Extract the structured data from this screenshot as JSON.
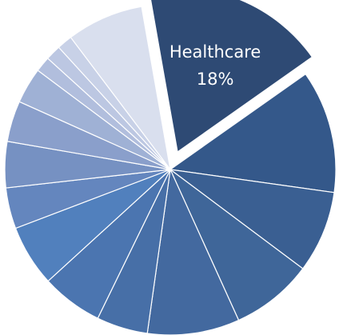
{
  "chart_data": {
    "type": "pie",
    "title": "",
    "slices": [
      {
        "label": "Healthcare",
        "value_label": "18%",
        "value": 18,
        "color": "#2e4a74",
        "exploded": true
      },
      {
        "value": 12,
        "color": "#34588a"
      },
      {
        "value": 8,
        "color": "#3a5f92"
      },
      {
        "value": 8,
        "color": "#3f6699"
      },
      {
        "value": 9,
        "color": "#43699f"
      },
      {
        "value": 5,
        "color": "#476fa7"
      },
      {
        "value": 6,
        "color": "#4b75b0"
      },
      {
        "value": 6,
        "color": "#5180bd"
      },
      {
        "value": 4,
        "color": "#6486be"
      },
      {
        "value": 4.5,
        "color": "#7691c2"
      },
      {
        "value": 4,
        "color": "#8a9fcb"
      },
      {
        "value": 3.5,
        "color": "#9fb1d5"
      },
      {
        "value": 1.5,
        "color": "#b1bedd"
      },
      {
        "value": 1.5,
        "color": "#bcc7e2"
      },
      {
        "value": 1.5,
        "color": "#c8d1e7"
      },
      {
        "value": 7.5,
        "color": "#d9dfee"
      }
    ]
  }
}
